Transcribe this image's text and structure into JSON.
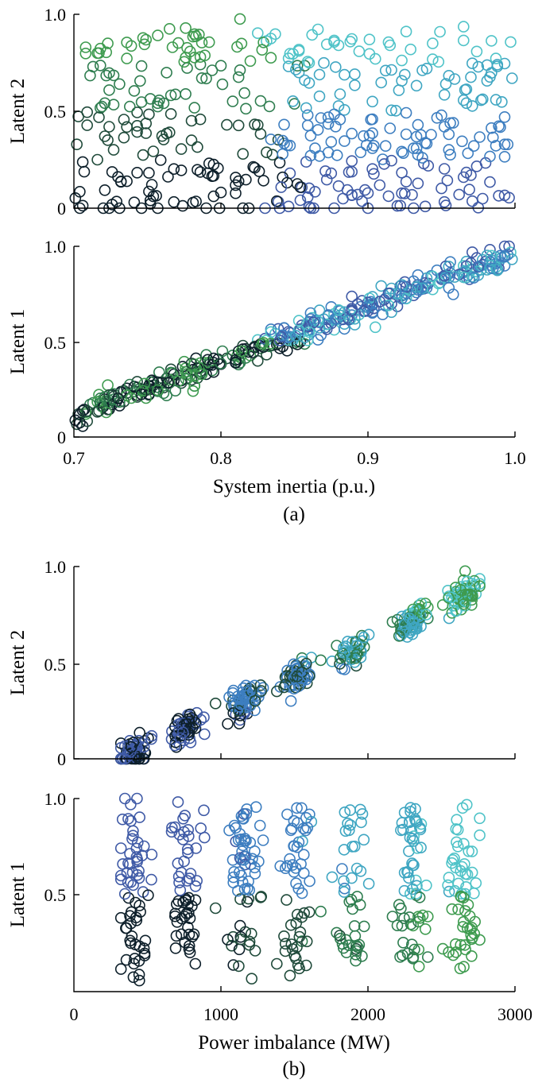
{
  "chart_data": [
    {
      "type": "scatter",
      "panel": "(a) top",
      "xlabel": "",
      "ylabel": "Latent 2",
      "xlim": [
        0.7,
        1.0
      ],
      "ylim": [
        0,
        1.0
      ],
      "yticks": [
        "0",
        "0.5",
        "1.0"
      ],
      "color_encoding": "viridis-like dark green to light cyan",
      "series": [
        {
          "x": [],
          "y": []
        }
      ]
    },
    {
      "type": "scatter",
      "panel": "(a) bottom",
      "xlabel": "System inertia (p.u.)",
      "ylabel": "Latent 1",
      "xlim": [
        0.7,
        1.0
      ],
      "ylim": [
        0,
        1.0
      ],
      "xticks": [
        "0.7",
        "0.8",
        "0.9",
        "1.0"
      ],
      "yticks": [
        "0",
        "0.5",
        "1.0"
      ],
      "caption": "(a)",
      "series": [
        {
          "x": [],
          "y": []
        }
      ]
    },
    {
      "type": "scatter",
      "panel": "(b) top",
      "xlabel": "",
      "ylabel": "Latent 2",
      "xlim": [
        0,
        3000
      ],
      "ylim": [
        0,
        1.0
      ],
      "yticks": [
        "0",
        "0.5",
        "1.0"
      ],
      "series": [
        {
          "x": [],
          "y": []
        }
      ]
    },
    {
      "type": "scatter",
      "panel": "(b) bottom",
      "xlabel": "Power imbalance (MW)",
      "ylabel": "Latent 1",
      "xlim": [
        0,
        3000
      ],
      "ylim": [
        0,
        1.0
      ],
      "xticks": [
        "0",
        "1000",
        "2000",
        "3000"
      ],
      "yticks": [
        "0.5",
        "1.0"
      ],
      "caption": "(b)",
      "series": [
        {
          "x": [],
          "y": []
        }
      ]
    }
  ],
  "colors": {
    "palette": [
      "#0d1f2a",
      "#1f4a3a",
      "#2e7d4f",
      "#3e9b4f",
      "#3f5aa6",
      "#3d7ec0",
      "#3fa6c2",
      "#4fc3c8"
    ]
  }
}
